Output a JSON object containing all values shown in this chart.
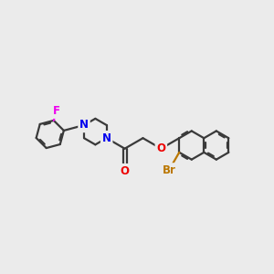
{
  "bg_color": "#EBEBEB",
  "bond_color": "#3a3a3a",
  "bond_width": 1.6,
  "atom_colors": {
    "N": "#0000EE",
    "O": "#EE0000",
    "F": "#EE00EE",
    "Br": "#BB7700",
    "C": "#3a3a3a"
  },
  "font_size_atom": 8.5
}
